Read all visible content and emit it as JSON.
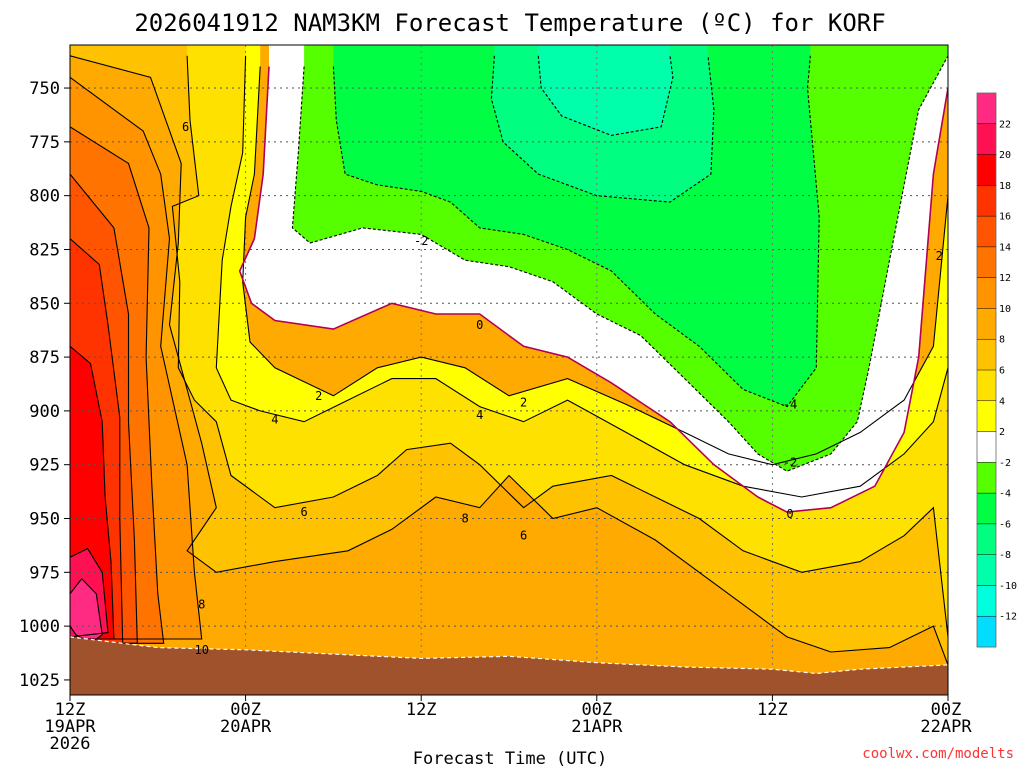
{
  "chart_data": {
    "type": "time-height filled contour",
    "title": "2026041912 NAM3KM Forecast Temperature (ºC) for KORF",
    "xlabel": "Forecast Time (UTC)",
    "ylabel": "",
    "credit": "coolwx.com/modelts",
    "x_ticks": [
      {
        "hour": 0,
        "lines": [
          "12Z",
          "19APR",
          "2026"
        ]
      },
      {
        "hour": 12,
        "lines": [
          "00Z",
          "20APR"
        ]
      },
      {
        "hour": 24,
        "lines": [
          "12Z"
        ]
      },
      {
        "hour": 36,
        "lines": [
          "00Z",
          "21APR"
        ]
      },
      {
        "hour": 48,
        "lines": [
          "12Z"
        ]
      },
      {
        "hour": 60,
        "lines": [
          "00Z",
          "22APR"
        ]
      }
    ],
    "xlim_hours": [
      0,
      60
    ],
    "y_ticks": [
      750,
      775,
      800,
      825,
      850,
      875,
      900,
      925,
      950,
      975,
      1000,
      1025
    ],
    "ylim_hPa": [
      730,
      1032
    ],
    "colorbar": {
      "labels": [
        "22",
        "20",
        "18",
        "16",
        "14",
        "12",
        "10",
        "8",
        "6",
        "4",
        "2",
        "-2",
        "-4",
        "-6",
        "-8",
        "-10",
        "-12"
      ],
      "bands": [
        {
          "min": 22,
          "max": 24,
          "color": "#ff2a82"
        },
        {
          "min": 20,
          "max": 22,
          "color": "#ff1053"
        },
        {
          "min": 18,
          "max": 20,
          "color": "#ff0000"
        },
        {
          "min": 16,
          "max": 18,
          "color": "#ff3300"
        },
        {
          "min": 14,
          "max": 16,
          "color": "#ff5500"
        },
        {
          "min": 12,
          "max": 14,
          "color": "#ff7300"
        },
        {
          "min": 10,
          "max": 12,
          "color": "#ff9400"
        },
        {
          "min": 8,
          "max": 10,
          "color": "#ffaa00"
        },
        {
          "min": 6,
          "max": 8,
          "color": "#ffc200"
        },
        {
          "min": 4,
          "max": 6,
          "color": "#ffe100"
        },
        {
          "min": 2,
          "max": 4,
          "color": "#ffff00"
        },
        {
          "min": -2,
          "max": 2,
          "color": "#ffffff"
        },
        {
          "min": -4,
          "max": -2,
          "color": "#55ff00"
        },
        {
          "min": -6,
          "max": -4,
          "color": "#00ff44"
        },
        {
          "min": -8,
          "max": -6,
          "color": "#00ff80"
        },
        {
          "min": -10,
          "max": -8,
          "color": "#00ffaa"
        },
        {
          "min": -12,
          "max": -10,
          "color": "#00ffdd"
        },
        {
          "min": -14,
          "max": -12,
          "color": "#00ddff"
        }
      ]
    },
    "freezing_line_color": "#b00058",
    "terrain_color": "#a0522d",
    "contours": [
      {
        "value": 22,
        "points": [
          [
            0,
            985
          ],
          [
            0.8,
            978
          ],
          [
            1.8,
            985
          ],
          [
            2.2,
            1004
          ],
          [
            1.4,
            1008
          ],
          [
            0.4,
            1004
          ],
          [
            0,
            1000
          ]
        ]
      },
      {
        "value": 20,
        "points": [
          [
            0,
            968
          ],
          [
            1.2,
            964
          ],
          [
            2.2,
            975
          ],
          [
            2.6,
            1003
          ],
          [
            0,
            1005
          ]
        ]
      },
      {
        "value": 18,
        "points": [
          [
            0,
            870
          ],
          [
            1.4,
            878
          ],
          [
            2.2,
            905
          ],
          [
            2.4,
            940
          ],
          [
            2.8,
            970
          ],
          [
            3,
            1006
          ],
          [
            0,
            1006
          ]
        ]
      },
      {
        "value": 16,
        "points": [
          [
            0,
            820
          ],
          [
            2,
            832
          ],
          [
            2.6,
            860
          ],
          [
            3.4,
            903
          ],
          [
            3.4,
            950
          ],
          [
            3.6,
            1008
          ],
          [
            0,
            1008
          ]
        ]
      },
      {
        "value": 14,
        "points": [
          [
            0,
            790
          ],
          [
            3,
            815
          ],
          [
            4,
            855
          ],
          [
            4,
            905
          ],
          [
            4.4,
            960
          ],
          [
            4.6,
            1008
          ],
          [
            0,
            1008
          ]
        ]
      },
      {
        "value": 12,
        "points": [
          [
            0,
            768
          ],
          [
            4,
            785
          ],
          [
            5.4,
            815
          ],
          [
            5.2,
            875
          ],
          [
            5.6,
            935
          ],
          [
            6,
            985
          ],
          [
            6.4,
            1008
          ],
          [
            0,
            1008
          ]
        ]
      },
      {
        "value": 10,
        "points": [
          [
            0,
            745
          ],
          [
            5,
            770
          ],
          [
            6.2,
            790
          ],
          [
            6.8,
            820
          ],
          [
            6.2,
            870
          ],
          [
            8,
            925
          ],
          [
            8.5,
            975
          ],
          [
            9,
            1006
          ],
          [
            0,
            1006
          ]
        ]
      },
      {
        "value": 8,
        "points": [
          [
            0,
            735
          ],
          [
            5.5,
            745
          ],
          [
            7.6,
            785
          ],
          [
            7.4,
            822
          ],
          [
            6.8,
            860
          ],
          [
            8,
            890
          ],
          [
            9,
            915
          ],
          [
            10,
            945
          ],
          [
            8,
            965
          ],
          [
            10,
            975
          ],
          [
            14,
            970
          ],
          [
            19,
            965
          ],
          [
            22,
            955
          ],
          [
            25,
            940
          ],
          [
            28,
            945
          ],
          [
            30,
            930
          ],
          [
            33,
            950
          ],
          [
            36,
            945
          ],
          [
            40,
            960
          ],
          [
            43,
            975
          ],
          [
            46,
            990
          ],
          [
            49,
            1005
          ],
          [
            52,
            1012
          ],
          [
            56,
            1010
          ],
          [
            59,
            1000
          ],
          [
            60,
            1018
          ]
        ]
      },
      {
        "value": 6,
        "points": [
          [
            8,
            735
          ],
          [
            8.2,
            765
          ],
          [
            8.8,
            800
          ],
          [
            7,
            805
          ],
          [
            7.5,
            840
          ],
          [
            7.4,
            880
          ],
          [
            8.5,
            895
          ],
          [
            10,
            905
          ],
          [
            11,
            930
          ],
          [
            14,
            945
          ],
          [
            18,
            940
          ],
          [
            21,
            930
          ],
          [
            23,
            918
          ],
          [
            26,
            915
          ],
          [
            28,
            925
          ],
          [
            31,
            945
          ],
          [
            33,
            935
          ],
          [
            37,
            930
          ],
          [
            40,
            940
          ],
          [
            43,
            950
          ],
          [
            46,
            965
          ],
          [
            50,
            975
          ],
          [
            54,
            970
          ],
          [
            57,
            958
          ],
          [
            59,
            945
          ],
          [
            60,
            1005
          ]
        ]
      },
      {
        "value": 4,
        "points": [
          [
            12,
            735
          ],
          [
            11.8,
            780
          ],
          [
            11,
            805
          ],
          [
            10.4,
            830
          ],
          [
            10,
            880
          ],
          [
            11,
            895
          ],
          [
            13,
            900
          ],
          [
            16,
            905
          ],
          [
            19,
            895
          ],
          [
            22,
            885
          ],
          [
            25,
            885
          ],
          [
            28,
            898
          ],
          [
            31,
            905
          ],
          [
            34,
            895
          ],
          [
            38,
            910
          ],
          [
            42,
            925
          ],
          [
            46,
            935
          ],
          [
            50,
            940
          ],
          [
            54,
            935
          ],
          [
            57,
            920
          ],
          [
            59,
            905
          ],
          [
            60,
            880
          ]
        ]
      },
      {
        "value": 2,
        "points": [
          [
            13,
            740
          ],
          [
            12.6,
            790
          ],
          [
            12,
            810
          ],
          [
            11.8,
            840
          ],
          [
            12.3,
            868
          ],
          [
            14,
            880
          ],
          [
            18,
            893
          ],
          [
            21,
            880
          ],
          [
            24,
            875
          ],
          [
            27,
            880
          ],
          [
            30,
            893
          ],
          [
            34,
            885
          ],
          [
            38,
            897
          ],
          [
            42,
            910
          ],
          [
            45,
            920
          ],
          [
            48,
            925
          ],
          [
            51,
            920
          ],
          [
            54,
            910
          ],
          [
            57,
            895
          ],
          [
            59,
            870
          ],
          [
            60,
            800
          ]
        ]
      },
      {
        "value": 0,
        "points": [
          [
            13.6,
            740
          ],
          [
            13.2,
            790
          ],
          [
            12.6,
            820
          ],
          [
            11.6,
            835
          ],
          [
            12.4,
            850
          ],
          [
            14,
            858
          ],
          [
            18,
            862
          ],
          [
            22,
            850
          ],
          [
            25,
            855
          ],
          [
            28,
            855
          ],
          [
            31,
            870
          ],
          [
            34,
            875
          ],
          [
            37,
            887
          ],
          [
            41,
            905
          ],
          [
            44,
            925
          ],
          [
            47,
            940
          ],
          [
            49,
            947
          ],
          [
            52,
            945
          ],
          [
            55,
            935
          ],
          [
            57,
            910
          ],
          [
            58,
            875
          ],
          [
            59,
            790
          ],
          [
            60,
            750
          ]
        ]
      },
      {
        "value": -2,
        "points": [
          [
            16,
            740
          ],
          [
            15.6,
            780
          ],
          [
            15.2,
            815
          ],
          [
            16.4,
            822
          ],
          [
            20,
            815
          ],
          [
            24,
            818
          ],
          [
            27,
            830
          ],
          [
            30,
            833
          ],
          [
            33,
            840
          ],
          [
            36,
            855
          ],
          [
            39,
            865
          ],
          [
            42,
            885
          ],
          [
            45,
            905
          ],
          [
            47,
            920
          ],
          [
            49,
            928
          ],
          [
            52,
            920
          ],
          [
            53.8,
            905
          ],
          [
            54.6,
            880
          ],
          [
            56,
            830
          ],
          [
            58,
            760
          ],
          [
            60,
            735
          ]
        ]
      },
      {
        "value": -4,
        "points": [
          [
            18,
            740
          ],
          [
            18.2,
            765
          ],
          [
            18.8,
            790
          ],
          [
            21,
            795
          ],
          [
            24,
            798
          ],
          [
            26,
            803
          ],
          [
            28,
            815
          ],
          [
            31,
            818
          ],
          [
            34,
            825
          ],
          [
            37,
            835
          ],
          [
            40,
            855
          ],
          [
            43,
            870
          ],
          [
            46,
            890
          ],
          [
            49,
            898
          ],
          [
            51,
            880
          ],
          [
            51.2,
            810
          ],
          [
            50.4,
            750
          ],
          [
            50.6,
            735
          ]
        ]
      },
      {
        "value": -6,
        "points": [
          [
            29,
            735
          ],
          [
            28.8,
            755
          ],
          [
            29.6,
            775
          ],
          [
            32,
            790
          ],
          [
            36,
            800
          ],
          [
            41,
            803
          ],
          [
            43.8,
            790
          ],
          [
            44,
            760
          ],
          [
            43.6,
            735
          ]
        ]
      },
      {
        "value": -8,
        "points": [
          [
            32,
            735
          ],
          [
            32.2,
            750
          ],
          [
            33.6,
            763
          ],
          [
            37,
            772
          ],
          [
            40.4,
            768
          ],
          [
            41.2,
            745
          ],
          [
            41,
            735
          ]
        ]
      }
    ],
    "contour_labels": [
      {
        "text": "6",
        "hour": 7.9,
        "hPa": 768
      },
      {
        "text": "-2",
        "hour": 24,
        "hPa": 821
      },
      {
        "text": "0",
        "hour": 28,
        "hPa": 860
      },
      {
        "text": "2",
        "hour": 17,
        "hPa": 893
      },
      {
        "text": "2",
        "hour": 31,
        "hPa": 896
      },
      {
        "text": "2",
        "hour": 59.4,
        "hPa": 828
      },
      {
        "text": "4",
        "hour": 14,
        "hPa": 904
      },
      {
        "text": "4",
        "hour": 28,
        "hPa": 902
      },
      {
        "text": "-4",
        "hour": 49.2,
        "hPa": 897
      },
      {
        "text": "-2",
        "hour": 49.2,
        "hPa": 924
      },
      {
        "text": "0",
        "hour": 49.2,
        "hPa": 948
      },
      {
        "text": "6",
        "hour": 16,
        "hPa": 947
      },
      {
        "text": "6",
        "hour": 31,
        "hPa": 958
      },
      {
        "text": "8",
        "hour": 27,
        "hPa": 950
      },
      {
        "text": "8",
        "hour": 9,
        "hPa": 990
      },
      {
        "text": "10",
        "hour": 9,
        "hPa": 1011
      }
    ],
    "terrain_top": [
      [
        0,
        1005
      ],
      [
        6,
        1010
      ],
      [
        12,
        1011
      ],
      [
        18,
        1013
      ],
      [
        24,
        1015
      ],
      [
        30,
        1014
      ],
      [
        36,
        1017
      ],
      [
        42,
        1019
      ],
      [
        48,
        1020
      ],
      [
        51,
        1022
      ],
      [
        54,
        1020
      ],
      [
        60,
        1018
      ]
    ]
  }
}
